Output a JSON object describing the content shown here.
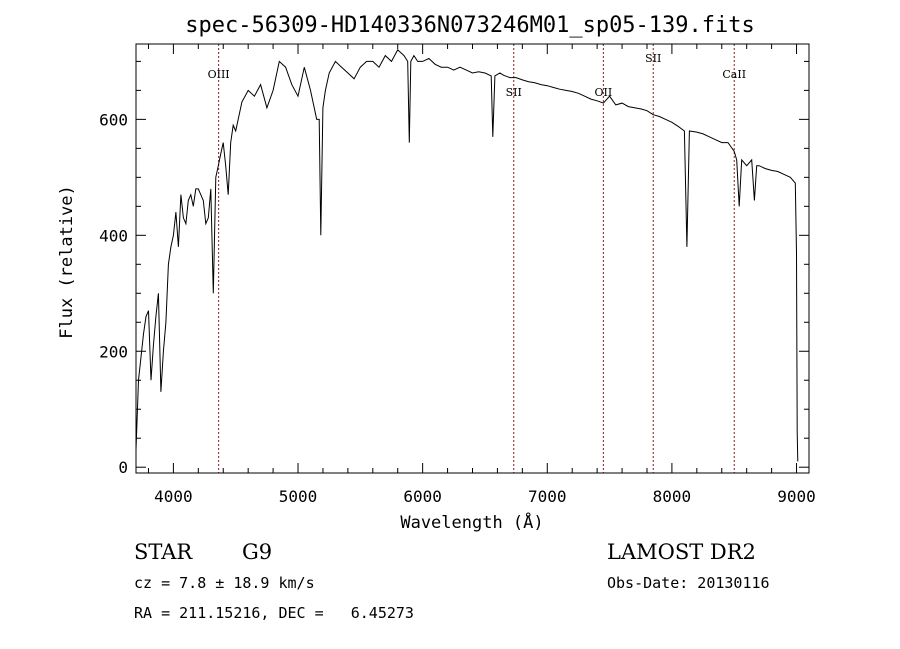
{
  "chart_data": {
    "type": "line",
    "title": "spec-56309-HD140336N073246M01_sp05-139.fits",
    "xlabel": "Wavelength (Å)",
    "ylabel": "Flux (relative)",
    "xlim": [
      3700,
      9100
    ],
    "ylim": [
      -10,
      730
    ],
    "xticks": [
      4000,
      5000,
      6000,
      7000,
      8000,
      9000
    ],
    "yticks": [
      0,
      200,
      400,
      600
    ],
    "line_color": "#000000",
    "marker_color": "#8b1a1a",
    "series": [
      {
        "x": [
          3700,
          3720,
          3740,
          3760,
          3780,
          3800,
          3820,
          3840,
          3860,
          3880,
          3900,
          3920,
          3940,
          3960,
          3980,
          4000,
          4020,
          4040,
          4060,
          4080,
          4100,
          4120,
          4140,
          4160,
          4180,
          4200,
          4220,
          4240,
          4260,
          4280,
          4300,
          4320,
          4340,
          4360,
          4380,
          4400,
          4420,
          4440,
          4460,
          4480,
          4500,
          4550,
          4600,
          4650,
          4700,
          4750,
          4800,
          4850,
          4900,
          4950,
          5000,
          5050,
          5100,
          5150,
          5170,
          5183,
          5200,
          5220,
          5250,
          5300,
          5350,
          5400,
          5450,
          5500,
          5550,
          5600,
          5650,
          5700,
          5750,
          5800,
          5850,
          5880,
          5893,
          5905,
          5930,
          5960,
          6000,
          6050,
          6100,
          6150,
          6200,
          6250,
          6300,
          6350,
          6400,
          6450,
          6500,
          6550,
          6563,
          6580,
          6620,
          6650,
          6700,
          6750,
          6800,
          6850,
          6900,
          6950,
          7000,
          7050,
          7100,
          7150,
          7200,
          7250,
          7300,
          7350,
          7400,
          7450,
          7500,
          7550,
          7600,
          7650,
          7700,
          7750,
          7800,
          7850,
          7900,
          7950,
          8000,
          8050,
          8100,
          8120,
          8140,
          8200,
          8250,
          8300,
          8350,
          8400,
          8450,
          8500,
          8520,
          8540,
          8560,
          8600,
          8640,
          8662,
          8680,
          8700,
          8750,
          8800,
          8850,
          8900,
          8950,
          8990,
          9000,
          9005,
          9010
        ],
        "y": [
          30,
          150,
          190,
          230,
          260,
          270,
          150,
          210,
          260,
          300,
          130,
          200,
          250,
          350,
          380,
          400,
          440,
          380,
          470,
          430,
          420,
          460,
          470,
          450,
          480,
          480,
          470,
          460,
          420,
          430,
          480,
          300,
          500,
          520,
          540,
          560,
          520,
          470,
          560,
          590,
          580,
          630,
          650,
          640,
          660,
          620,
          650,
          700,
          690,
          660,
          640,
          690,
          650,
          600,
          600,
          400,
          620,
          650,
          680,
          700,
          690,
          680,
          670,
          690,
          700,
          700,
          690,
          710,
          700,
          720,
          710,
          700,
          560,
          700,
          710,
          700,
          700,
          705,
          695,
          690,
          690,
          685,
          690,
          685,
          680,
          682,
          680,
          675,
          570,
          675,
          680,
          676,
          672,
          672,
          668,
          665,
          663,
          660,
          658,
          655,
          652,
          650,
          648,
          645,
          640,
          635,
          632,
          628,
          640,
          625,
          628,
          622,
          620,
          618,
          615,
          608,
          605,
          600,
          595,
          588,
          580,
          380,
          580,
          578,
          575,
          570,
          565,
          560,
          560,
          545,
          530,
          450,
          530,
          520,
          530,
          460,
          520,
          520,
          515,
          512,
          510,
          505,
          500,
          490,
          370,
          60,
          10
        ]
      }
    ],
    "line_markers": [
      {
        "label": "OIII",
        "x": 4363
      },
      {
        "label": "SII",
        "x": 6731
      },
      {
        "label": "OII",
        "x": 7450
      },
      {
        "label": "SII",
        "x": 7850
      },
      {
        "label": "CaII",
        "x": 8500
      }
    ]
  },
  "info": {
    "class_label": "STAR",
    "subclass": "G9",
    "survey": "LAMOST DR2",
    "cz": "cz = 7.8 ± 18.9 km/s",
    "obs_date": "Obs-Date: 20130116",
    "radec": "RA = 211.15216, DEC =   6.45273"
  }
}
